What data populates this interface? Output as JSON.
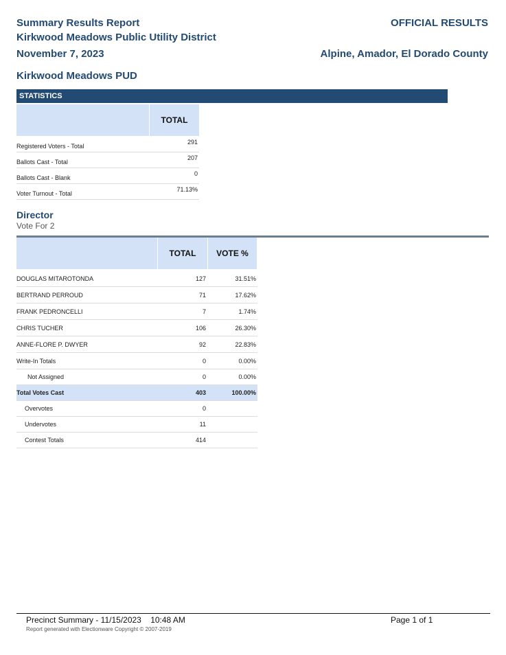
{
  "header": {
    "title": "Summary Results Report",
    "district": "Kirkwood Meadows Public Utility District",
    "date": "November 7, 2023",
    "status": "OFFICIAL RESULTS",
    "counties": "Alpine, Amador, El Dorado County",
    "jurisdiction": "Kirkwood Meadows PUD"
  },
  "statistics": {
    "section_label": "STATISTICS",
    "column": "TOTAL",
    "rows": [
      {
        "label": "Registered Voters - Total",
        "value": "291"
      },
      {
        "label": "Ballots Cast - Total",
        "value": "207"
      },
      {
        "label": "Ballots Cast - Blank",
        "value": "0"
      },
      {
        "label": "Voter Turnout - Total",
        "value": "71.13%"
      }
    ]
  },
  "contest": {
    "title": "Director",
    "vote_for": "Vote For 2",
    "columns": [
      "TOTAL",
      "VOTE %"
    ],
    "rows": [
      {
        "label": "DOUGLAS MITAROTONDA",
        "total": "127",
        "pct": "31.51%"
      },
      {
        "label": "BERTRAND PERROUD",
        "total": "71",
        "pct": "17.62%"
      },
      {
        "label": "FRANK PEDRONCELLI",
        "total": "7",
        "pct": "1.74%"
      },
      {
        "label": "CHRIS TUCHER",
        "total": "106",
        "pct": "26.30%"
      },
      {
        "label": "ANNE-FLORE P. DWYER",
        "total": "92",
        "pct": "22.83%"
      },
      {
        "label": "Write-In Totals",
        "total": "0",
        "pct": "0.00%"
      },
      {
        "label": "Not Assigned",
        "total": "0",
        "pct": "0.00%"
      },
      {
        "label": "Total Votes Cast",
        "total": "403",
        "pct": "100.00%"
      },
      {
        "label": "Overvotes",
        "total": "0",
        "pct": ""
      },
      {
        "label": "Undervotes",
        "total": "11",
        "pct": ""
      },
      {
        "label": "Contest Totals",
        "total": "414",
        "pct": ""
      }
    ]
  },
  "footer": {
    "summary": "Precinct Summary - 11/15/2023    10:48 AM",
    "page": "Page 1 of 1",
    "copyright": "Report generated with Electionware Copyright © 2007-2019"
  },
  "colors": {
    "accent": "#234a72",
    "header_fill": "#d3e2f7"
  }
}
